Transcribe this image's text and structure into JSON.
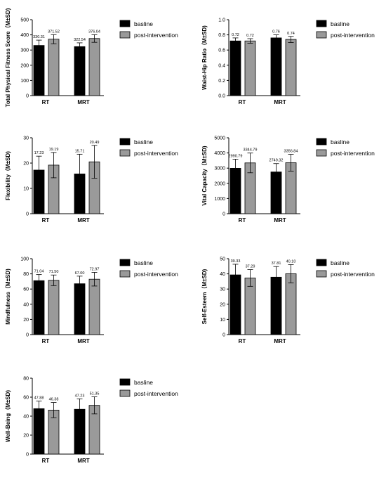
{
  "colors": {
    "baseline": "#000000",
    "post": "#9a9a9a",
    "axis": "#000000"
  },
  "chart_data": [
    {
      "type": "bar",
      "ylabel": "Total Physical Fitness Score（M±SD)",
      "categories": [
        "RT",
        "MRT"
      ],
      "ylim": [
        0,
        500
      ],
      "yticks": [
        0,
        100,
        200,
        300,
        400,
        500
      ],
      "series": [
        {
          "name": "basline",
          "values": [
            330.31,
            322.54
          ],
          "errors": [
            35,
            25
          ],
          "labels": [
            "330.31",
            "322.54"
          ]
        },
        {
          "name": "post-intervention",
          "values": [
            371.52,
            376.04
          ],
          "errors": [
            30,
            25
          ],
          "labels": [
            "371.52",
            "376.04"
          ]
        }
      ]
    },
    {
      "type": "bar",
      "ylabel": "Waist-Hip Ratio（M±SD)",
      "categories": [
        "RT",
        "MRT"
      ],
      "ylim": [
        0,
        1.0
      ],
      "yticks": [
        0.0,
        0.2,
        0.4,
        0.6,
        0.8,
        1.0
      ],
      "tick_labels": [
        "0.0",
        "0.2",
        "0.4",
        "0.6",
        "0.8",
        "1.0"
      ],
      "series": [
        {
          "name": "basline",
          "values": [
            0.72,
            0.76
          ],
          "errors": [
            0.04,
            0.04
          ],
          "labels": [
            "0.72",
            "0.76"
          ]
        },
        {
          "name": "post-intervention",
          "values": [
            0.72,
            0.74
          ],
          "errors": [
            0.03,
            0.04
          ],
          "labels": [
            "0.72",
            "0.74"
          ]
        }
      ]
    },
    {
      "type": "bar",
      "ylabel": "Flexibility（M±SD)",
      "categories": [
        "RT",
        "MRT"
      ],
      "ylim": [
        0,
        30
      ],
      "yticks": [
        0,
        10,
        20,
        30
      ],
      "series": [
        {
          "name": "basline",
          "values": [
            17.23,
            15.71
          ],
          "errors": [
            5.5,
            7.8
          ],
          "labels": [
            "17.23",
            "15.71"
          ]
        },
        {
          "name": "post-intervention",
          "values": [
            19.19,
            20.49
          ],
          "errors": [
            5.0,
            6.5
          ],
          "labels": [
            "19.19",
            "20.49"
          ]
        }
      ]
    },
    {
      "type": "bar",
      "ylabel": "Vital Capacity（M±SD)",
      "categories": [
        "RT",
        "MRT"
      ],
      "ylim": [
        0,
        5000
      ],
      "yticks": [
        0,
        1000,
        2000,
        3000,
        4000,
        5000
      ],
      "series": [
        {
          "name": "basline",
          "values": [
            2990.79,
            2749.32
          ],
          "errors": [
            600,
            550
          ],
          "labels": [
            "2990.79",
            "2749.32"
          ]
        },
        {
          "name": "post-intervention",
          "values": [
            3344.79,
            3356.84
          ],
          "errors": [
            650,
            550
          ],
          "labels": [
            "3344.79",
            "3356.84"
          ]
        }
      ]
    },
    {
      "type": "bar",
      "ylabel": "Mindfulness（M±SD)",
      "categories": [
        "RT",
        "MRT"
      ],
      "ylim": [
        0,
        100
      ],
      "yticks": [
        0,
        20,
        40,
        60,
        80,
        100
      ],
      "series": [
        {
          "name": "basline",
          "values": [
            71.04,
            67.0
          ],
          "errors": [
            8,
            10
          ],
          "labels": [
            "71.04",
            "67.00"
          ]
        },
        {
          "name": "post-intervention",
          "values": [
            71.5,
            72.97
          ],
          "errors": [
            7,
            9
          ],
          "labels": [
            "71.50",
            "72.97"
          ]
        }
      ]
    },
    {
      "type": "bar",
      "ylabel": "Self-Esteem（M±SD)",
      "categories": [
        "RT",
        "MRT"
      ],
      "ylim": [
        0,
        50
      ],
      "yticks": [
        0,
        10,
        20,
        30,
        40,
        50
      ],
      "series": [
        {
          "name": "basline",
          "values": [
            39.33,
            37.81
          ],
          "errors": [
            7,
            7
          ],
          "labels": [
            "39.33",
            "37.81"
          ]
        },
        {
          "name": "post-intervention",
          "values": [
            37.29,
            40.1
          ],
          "errors": [
            5.5,
            6
          ],
          "labels": [
            "37.29",
            "40.10"
          ]
        }
      ]
    },
    {
      "type": "bar",
      "ylabel": "Well-Being（M±SD)",
      "categories": [
        "RT",
        "MRT"
      ],
      "ylim": [
        0,
        80
      ],
      "yticks": [
        0,
        20,
        40,
        60,
        80
      ],
      "series": [
        {
          "name": "basline",
          "values": [
            47.88,
            47.23
          ],
          "errors": [
            8,
            11
          ],
          "labels": [
            "47.88",
            "47.23"
          ]
        },
        {
          "name": "post-intervention",
          "values": [
            46.38,
            51.35
          ],
          "errors": [
            8,
            9
          ],
          "labels": [
            "46.38",
            "51.35"
          ]
        }
      ]
    }
  ]
}
